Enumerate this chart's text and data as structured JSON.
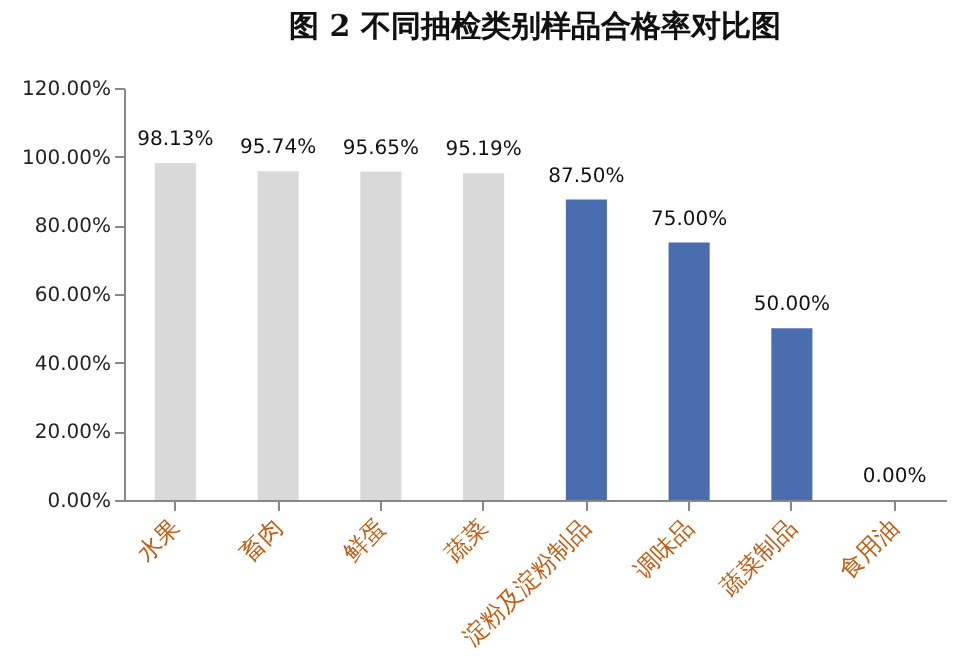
{
  "chart_data": {
    "type": "bar",
    "title": "图 2  不同抽检类别样品合格率对比图",
    "categories": [
      "水果",
      "畜肉",
      "鲜蛋",
      "蔬菜",
      "淀粉及淀粉制品",
      "调味品",
      "蔬菜制品",
      "食用油"
    ],
    "values": [
      98.13,
      95.74,
      95.65,
      95.19,
      87.5,
      75.0,
      50.0,
      0.0
    ],
    "colors": [
      "#d9d9d9",
      "#d9d9d9",
      "#d9d9d9",
      "#d9d9d9",
      "#4a6db0",
      "#4a6db0",
      "#4a6db0",
      "#4a6db0"
    ],
    "value_labels": [
      "98.13%",
      "95.74%",
      "95.65%",
      "95.19%",
      "87.50%",
      "75.00%",
      "50.00%",
      "0.00%"
    ],
    "ylim": [
      0,
      120
    ],
    "yticks": [
      {
        "value": 0,
        "label": "0.00%"
      },
      {
        "value": 20,
        "label": "20.00%"
      },
      {
        "value": 40,
        "label": "40.00%"
      },
      {
        "value": 60,
        "label": "60.00%"
      },
      {
        "value": 80,
        "label": "80.00%"
      },
      {
        "value": 100,
        "label": "100.00%"
      },
      {
        "value": 120,
        "label": "120.00%"
      }
    ],
    "grid": false
  }
}
